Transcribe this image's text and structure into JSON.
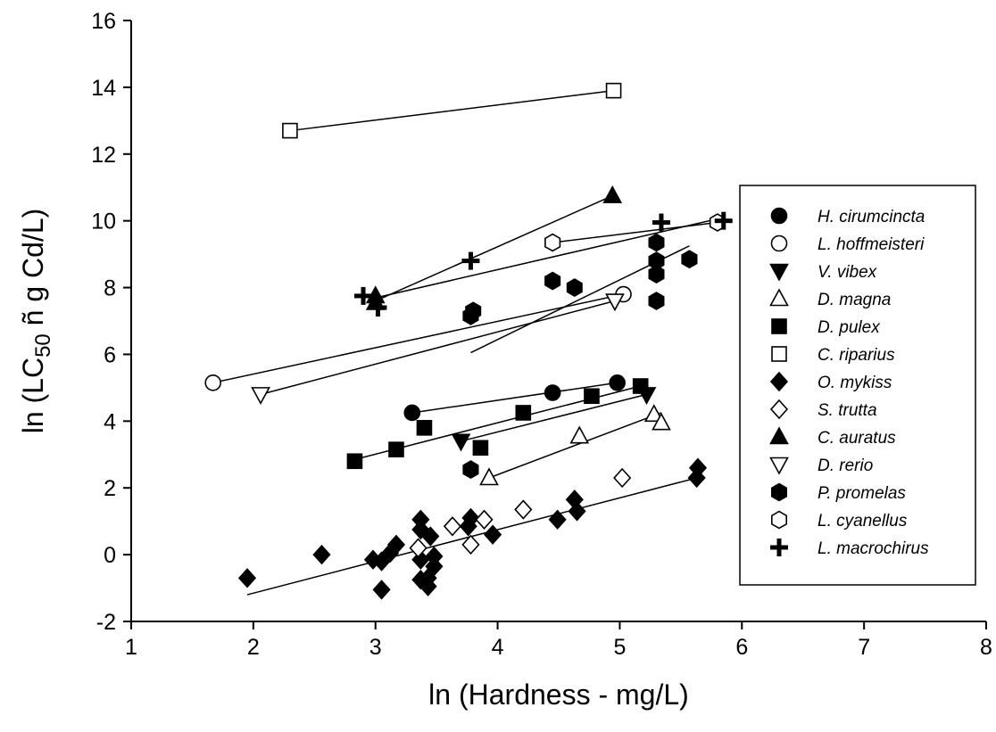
{
  "chart_data": {
    "type": "scatter",
    "xlabel": "ln (Hardness - mg/L)",
    "ylabel": "ln (LC50 ñ g Cd/L)",
    "ylabel_parts": {
      "prefix": "ln (LC",
      "subscript": "50",
      "suffix": " ñ  g Cd/L)"
    },
    "xlim": [
      1,
      8
    ],
    "ylim": [
      -2,
      16
    ],
    "xticks": [
      "1",
      "2",
      "3",
      "4",
      "5",
      "6",
      "7",
      "8"
    ],
    "yticks": [
      "-2",
      "0",
      "2",
      "4",
      "6",
      "8",
      "10",
      "12",
      "14",
      "16"
    ],
    "legend_position": "right",
    "series": [
      {
        "name": "H. cirumcincta",
        "marker": "circle-filled",
        "points": [
          [
            3.3,
            4.25
          ],
          [
            4.45,
            4.85
          ],
          [
            4.98,
            5.15
          ]
        ],
        "fit": [
          [
            3.3,
            4.25
          ],
          [
            4.98,
            5.15
          ]
        ]
      },
      {
        "name": "L. hoffmeisteri",
        "marker": "circle-open",
        "points": [
          [
            1.67,
            5.15
          ],
          [
            5.03,
            7.8
          ]
        ],
        "fit": [
          [
            1.67,
            5.15
          ],
          [
            5.03,
            7.8
          ]
        ]
      },
      {
        "name": "V. vibex",
        "marker": "triangle-down-filled",
        "points": [
          [
            3.7,
            3.4
          ],
          [
            5.22,
            4.8
          ]
        ],
        "fit": [
          [
            3.7,
            3.4
          ],
          [
            5.22,
            4.8
          ]
        ]
      },
      {
        "name": "D. magna",
        "marker": "triangle-up-open",
        "points": [
          [
            3.93,
            2.3
          ],
          [
            4.67,
            3.55
          ],
          [
            5.28,
            4.2
          ],
          [
            5.34,
            3.95
          ]
        ],
        "fit": [
          [
            3.93,
            2.3
          ],
          [
            5.34,
            4.25
          ]
        ]
      },
      {
        "name": "D. pulex",
        "marker": "square-filled",
        "points": [
          [
            2.83,
            2.8
          ],
          [
            3.17,
            3.15
          ],
          [
            3.4,
            3.8
          ],
          [
            3.86,
            3.2
          ],
          [
            4.21,
            4.25
          ],
          [
            4.77,
            4.75
          ],
          [
            5.17,
            5.05
          ]
        ],
        "fit": [
          [
            2.83,
            2.85
          ],
          [
            5.17,
            5.05
          ]
        ]
      },
      {
        "name": "C. riparius",
        "marker": "square-open",
        "points": [
          [
            2.3,
            12.7
          ],
          [
            4.95,
            13.9
          ]
        ],
        "fit": [
          [
            2.3,
            12.7
          ],
          [
            4.95,
            13.9
          ]
        ]
      },
      {
        "name": "O. mykiss",
        "marker": "diamond-filled",
        "points": [
          [
            1.95,
            -0.7
          ],
          [
            2.56,
            0.0
          ],
          [
            2.98,
            -0.15
          ],
          [
            3.05,
            -1.05
          ],
          [
            3.05,
            -0.2
          ],
          [
            3.12,
            0.05
          ],
          [
            3.17,
            0.3
          ],
          [
            3.37,
            1.05
          ],
          [
            3.37,
            0.75
          ],
          [
            3.37,
            -0.15
          ],
          [
            3.37,
            -0.75
          ],
          [
            3.43,
            -0.95
          ],
          [
            3.43,
            -0.7
          ],
          [
            3.45,
            0.55
          ],
          [
            3.48,
            -0.05
          ],
          [
            3.48,
            -0.35
          ],
          [
            3.76,
            0.85
          ],
          [
            3.78,
            1.1
          ],
          [
            3.96,
            0.6
          ],
          [
            4.49,
            1.05
          ],
          [
            4.63,
            1.65
          ],
          [
            4.65,
            1.3
          ],
          [
            5.63,
            2.3
          ],
          [
            5.64,
            2.6
          ]
        ],
        "fit": [
          [
            1.95,
            -1.2
          ],
          [
            5.63,
            2.3
          ]
        ]
      },
      {
        "name": "S. trutta",
        "marker": "diamond-open",
        "points": [
          [
            3.35,
            0.2
          ],
          [
            3.63,
            0.85
          ],
          [
            3.78,
            0.3
          ],
          [
            3.89,
            1.05
          ],
          [
            4.21,
            1.35
          ],
          [
            5.02,
            2.3
          ]
        ],
        "fit": []
      },
      {
        "name": "C. auratus",
        "marker": "triangle-up-filled",
        "points": [
          [
            3.0,
            7.75
          ],
          [
            3.0,
            7.55
          ],
          [
            4.94,
            10.75
          ]
        ],
        "fit": [
          [
            3.0,
            7.6
          ],
          [
            4.94,
            10.75
          ]
        ]
      },
      {
        "name": "D. rerio",
        "marker": "triangle-down-open",
        "points": [
          [
            2.06,
            4.8
          ],
          [
            4.96,
            7.6
          ]
        ],
        "fit": [
          [
            2.06,
            4.8
          ],
          [
            4.96,
            7.6
          ]
        ]
      },
      {
        "name": "P. promelas",
        "marker": "hexagon-filled",
        "points": [
          [
            3.78,
            2.55
          ],
          [
            3.78,
            7.15
          ],
          [
            3.8,
            7.3
          ],
          [
            4.45,
            8.2
          ],
          [
            4.63,
            8.0
          ],
          [
            5.3,
            9.35
          ],
          [
            5.3,
            8.8
          ],
          [
            5.3,
            8.4
          ],
          [
            5.3,
            7.6
          ],
          [
            5.57,
            8.85
          ]
        ],
        "fit": [
          [
            3.78,
            6.05
          ],
          [
            5.57,
            9.25
          ]
        ]
      },
      {
        "name": "L. cyanellus",
        "marker": "hexagon-open",
        "points": [
          [
            4.45,
            9.35
          ],
          [
            5.8,
            9.95
          ]
        ],
        "fit": [
          [
            4.45,
            9.35
          ],
          [
            5.8,
            9.95
          ]
        ]
      },
      {
        "name": "L. macrochirus",
        "marker": "plus-filled",
        "points": [
          [
            2.9,
            7.75
          ],
          [
            3.02,
            7.4
          ],
          [
            3.78,
            8.8
          ],
          [
            5.34,
            9.95
          ],
          [
            5.85,
            10.0
          ]
        ],
        "fit": [
          [
            2.95,
            7.65
          ],
          [
            5.85,
            10.1
          ]
        ]
      }
    ]
  }
}
